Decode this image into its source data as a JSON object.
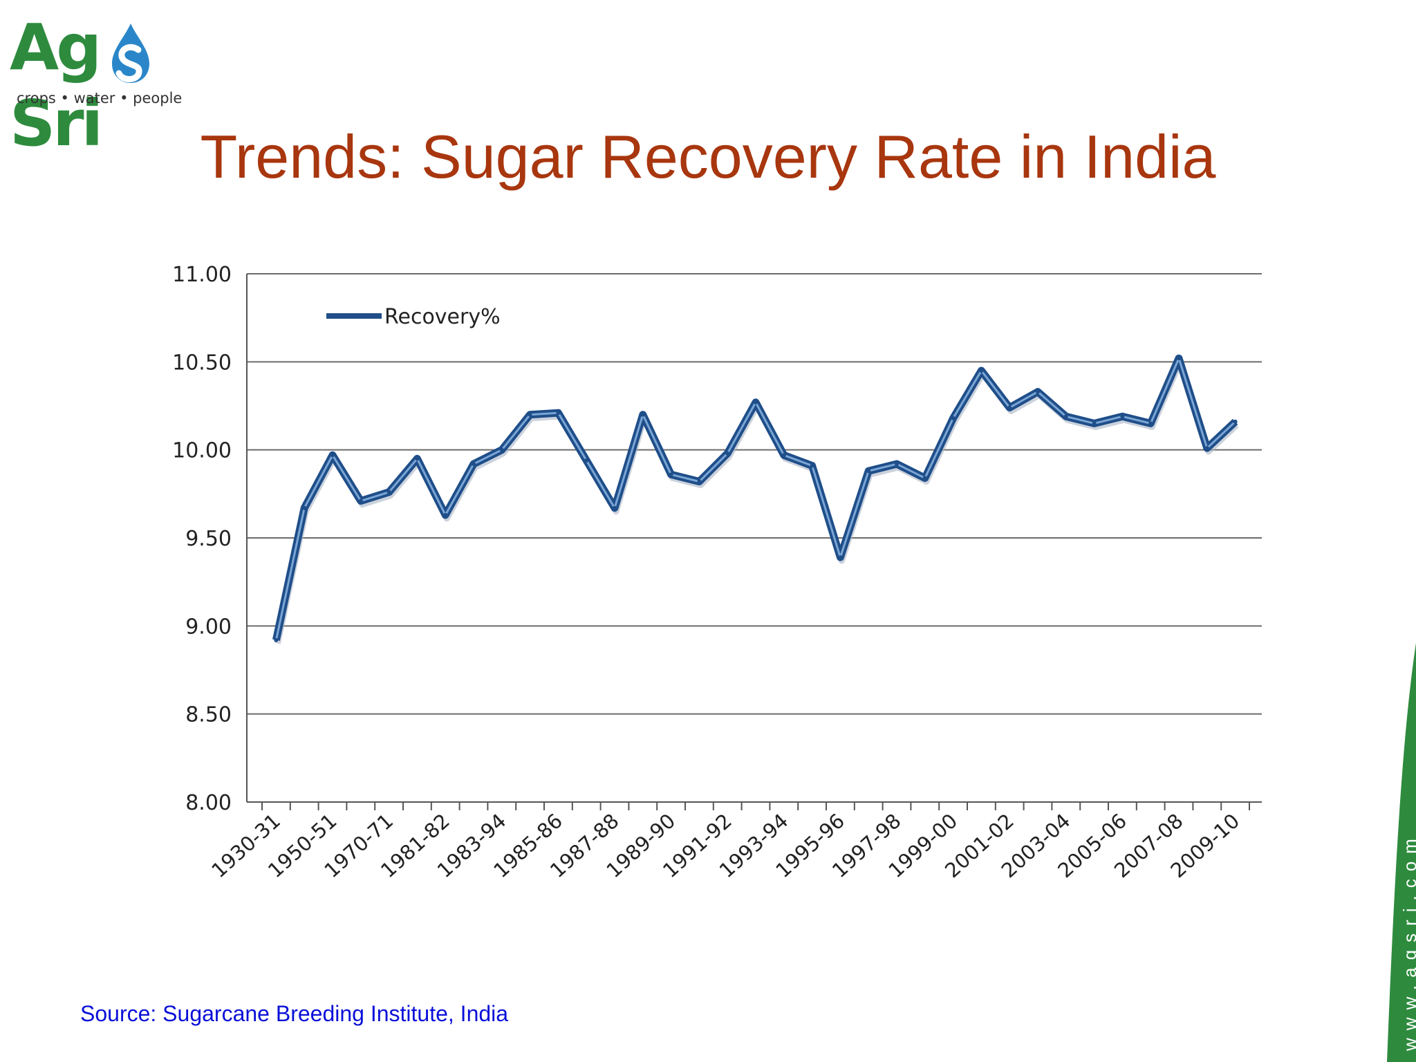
{
  "logo": {
    "word_part1": "Ag",
    "word_part2": "Sri",
    "tagline": "crops • water • people",
    "color": "#2e8b3e",
    "accent_color": "#2a86c9"
  },
  "slide": {
    "title": "Trends: Sugar Recovery Rate in India",
    "source": "Source: Sugarcane Breeding Institute, India",
    "side_url": "www.agsri.com"
  },
  "chart_data": {
    "type": "line",
    "title": "",
    "xlabel": "",
    "ylabel": "",
    "ylim": [
      8.0,
      11.0
    ],
    "yticks": [
      "8.00",
      "8.50",
      "9.00",
      "9.50",
      "10.00",
      "10.50",
      "11.00"
    ],
    "grid": true,
    "legend": "top-left",
    "x_tick_labels": [
      "1930-31",
      "1950-51",
      "1970-71",
      "1981-82",
      "1983-94",
      "1985-86",
      "1987-88",
      "1989-90",
      "1991-92",
      "1993-94",
      "1995-96",
      "1997-98",
      "1999-00",
      "2001-02",
      "2003-04",
      "2005-06",
      "2007-08",
      "2009-10"
    ],
    "series_color": "#1f4e89",
    "series": [
      {
        "name": "Recovery%",
        "values": [
          8.92,
          9.67,
          9.97,
          9.71,
          9.76,
          9.95,
          9.63,
          9.92,
          10.0,
          10.2,
          10.21,
          9.94,
          9.67,
          10.2,
          9.86,
          9.82,
          9.98,
          10.27,
          9.97,
          9.91,
          9.39,
          9.88,
          9.92,
          9.84,
          10.18,
          10.45,
          10.24,
          10.33,
          10.19,
          10.15,
          10.19,
          10.15,
          10.52,
          10.01,
          10.16
        ]
      }
    ]
  }
}
